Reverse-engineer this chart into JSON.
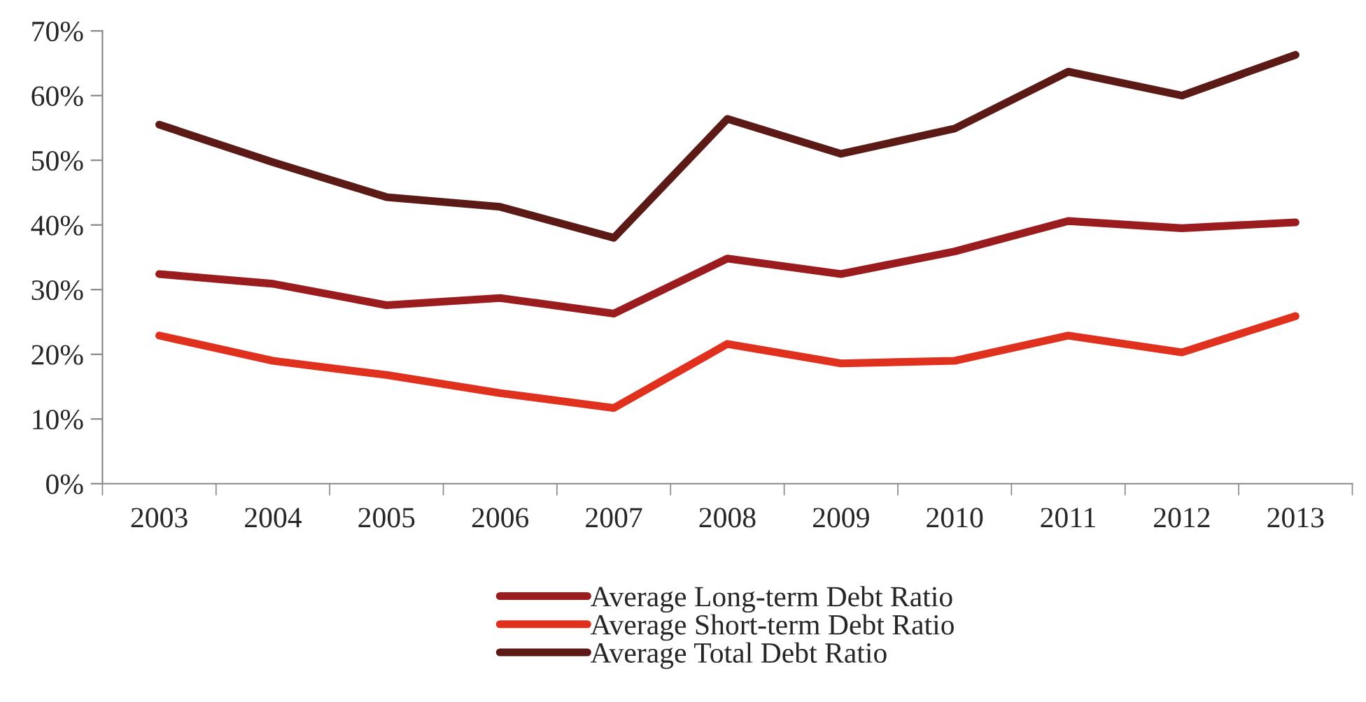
{
  "chart_data": {
    "type": "line",
    "categories": [
      "2003",
      "2004",
      "2005",
      "2006",
      "2007",
      "2008",
      "2009",
      "2010",
      "2011",
      "2012",
      "2013"
    ],
    "series": [
      {
        "name": "Average Long-term Debt Ratio",
        "color": "#9b1c1f",
        "values": [
          32.4,
          30.9,
          27.6,
          28.7,
          26.3,
          34.8,
          32.4,
          35.9,
          40.6,
          39.5,
          40.4
        ]
      },
      {
        "name": "Average Short-term Debt Ratio",
        "color": "#e0301e",
        "values": [
          22.9,
          19.0,
          16.8,
          14.0,
          11.7,
          21.6,
          18.6,
          19.0,
          22.9,
          20.3,
          25.9
        ]
      },
      {
        "name": "Average Total Debt Ratio",
        "color": "#5c1a17",
        "values": [
          55.5,
          49.7,
          44.3,
          42.8,
          38.0,
          56.4,
          51.0,
          54.9,
          63.7,
          60.0,
          66.3
        ]
      }
    ],
    "ylim": [
      0,
      70
    ],
    "yticks": [
      {
        "value": 0,
        "label": "0%"
      },
      {
        "value": 10,
        "label": "10%"
      },
      {
        "value": 20,
        "label": "20%"
      },
      {
        "value": 30,
        "label": "30%"
      },
      {
        "value": 40,
        "label": "40%"
      },
      {
        "value": 50,
        "label": "50%"
      },
      {
        "value": 60,
        "label": "60%"
      },
      {
        "value": 70,
        "label": "70%"
      }
    ],
    "grid": false,
    "legend": "bottom",
    "marker": "none",
    "line_style": "solid"
  }
}
